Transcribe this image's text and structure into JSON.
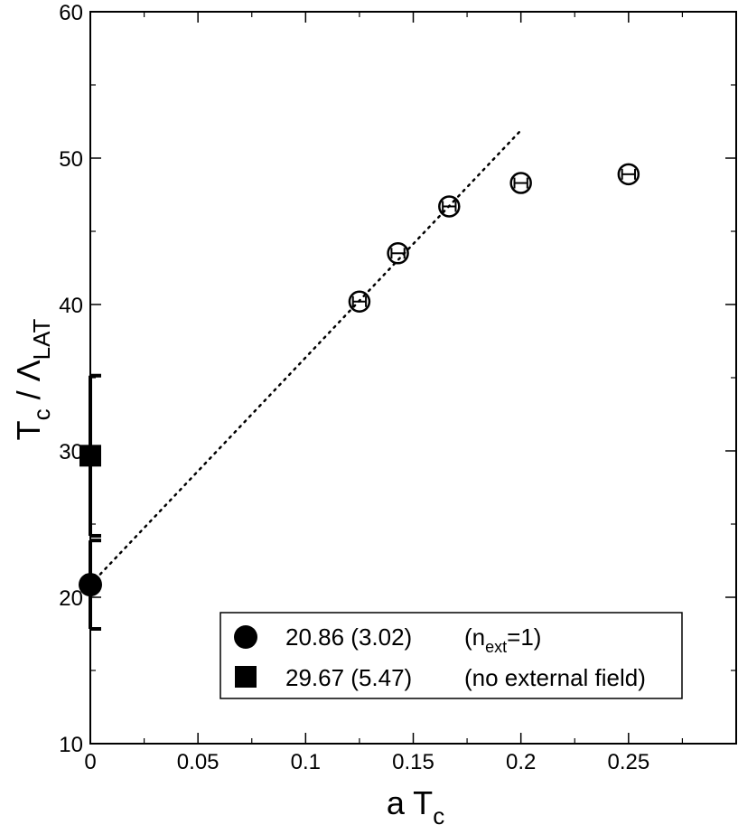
{
  "chart_data": {
    "type": "scatter",
    "xlabel": {
      "main": "a T",
      "sub": "c"
    },
    "ylabel": {
      "main": "T",
      "sub1": "c",
      "mid": " / Λ",
      "sub2": "LAT"
    },
    "xlim": [
      0,
      0.3
    ],
    "ylim": [
      10,
      60
    ],
    "x_ticks": [
      0,
      0.05,
      0.1,
      0.15,
      0.2,
      0.25
    ],
    "x_tick_labels": [
      "0",
      "0.05",
      "0.1",
      "0.15",
      "0.2",
      "0.25"
    ],
    "y_ticks": [
      10,
      20,
      30,
      40,
      50,
      60
    ],
    "y_tick_labels": [
      "10",
      "20",
      "30",
      "40",
      "50",
      "60"
    ],
    "grid": false,
    "series": [
      {
        "marker": "open-circle",
        "points": [
          {
            "x": 0.125,
            "y": 40.2,
            "xerr": 0.003
          },
          {
            "x": 0.1429,
            "y": 43.5,
            "xerr": 0.003
          },
          {
            "x": 0.1667,
            "y": 46.7,
            "xerr": 0.003
          },
          {
            "x": 0.2,
            "y": 48.3,
            "xerr": 0.003
          },
          {
            "x": 0.25,
            "y": 48.9,
            "xerr": 0.003
          }
        ]
      },
      {
        "marker": "filled-circle",
        "points": [
          {
            "x": 0,
            "y": 20.86,
            "yerr": 3.02
          }
        ]
      },
      {
        "marker": "filled-square",
        "points": [
          {
            "x": 0,
            "y": 29.67,
            "yerr": 5.47
          }
        ]
      }
    ],
    "fit_line": {
      "style": "dotted",
      "x": [
        0,
        0.2
      ],
      "y": [
        20.86,
        51.9
      ]
    },
    "legend": {
      "position": "bottom-right",
      "entries": [
        {
          "marker": "filled-circle",
          "value": "20.86 (3.02)",
          "note_pre": "(n",
          "note_sub": "ext",
          "note_post": "=1)"
        },
        {
          "marker": "filled-square",
          "value": "29.67 (5.47)",
          "note": "(no external field)"
        }
      ]
    }
  }
}
